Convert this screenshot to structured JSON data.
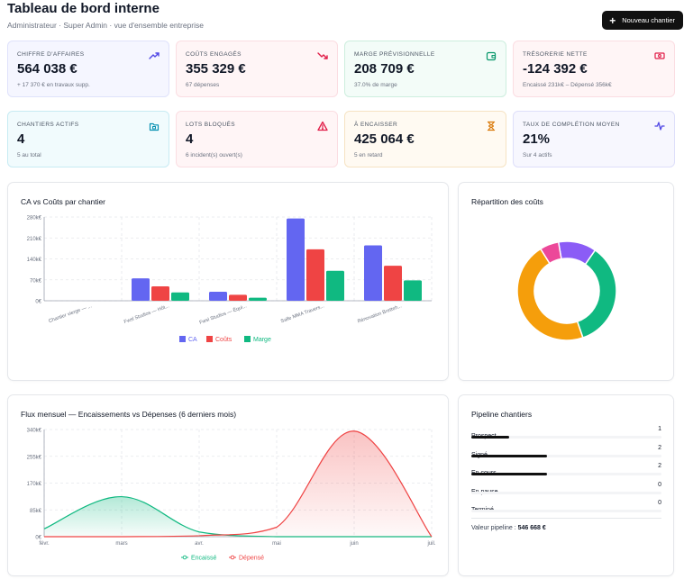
{
  "header": {
    "title": "Tableau de bord interne",
    "subtitle": "Administrateur · Super Admin · vue d'ensemble entreprise",
    "new_button": "Nouveau chantier"
  },
  "kpis": [
    {
      "label": "CHIFFRE D'AFFAIRES",
      "value": "564 038 €",
      "sub": "+ 17 370 € en travaux supp.",
      "icon": "trending-up-icon",
      "color": "#4f46e5"
    },
    {
      "label": "COÛTS ENGAGÉS",
      "value": "355 329 €",
      "sub": "67 dépenses",
      "icon": "trending-down-icon",
      "color": "#e11d48"
    },
    {
      "label": "MARGE PRÉVISIONNELLE",
      "value": "208 709 €",
      "sub": "37.0% de marge",
      "icon": "wallet-icon",
      "color": "#059669"
    },
    {
      "label": "TRÉSORERIE NETTE",
      "value": "-124 392 €",
      "sub": "Encaissé 231k€ – Dépensé 356k€",
      "icon": "banknote-icon",
      "color": "#e11d48"
    },
    {
      "label": "CHANTIERS ACTIFS",
      "value": "4",
      "sub": "5 au total",
      "icon": "folder-icon",
      "color": "#0891b2"
    },
    {
      "label": "LOTS BLOQUÉS",
      "value": "4",
      "sub": "6 incident(s) ouvert(s)",
      "icon": "alert-triangle-icon",
      "color": "#e11d48"
    },
    {
      "label": "À ENCAISSER",
      "value": "425 064 €",
      "sub": "5 en retard",
      "icon": "hourglass-icon",
      "color": "#d97706"
    },
    {
      "label": "TAUX DE COMPLÉTION MOYEN",
      "value": "21%",
      "sub": "Sur 4 actifs",
      "icon": "activity-icon",
      "color": "#4f46e5"
    }
  ],
  "bar_card": {
    "title": "CA vs Coûts par chantier"
  },
  "donut_card": {
    "title": "Répartition des coûts"
  },
  "flux_card": {
    "title": "Flux mensuel — Encaissements vs Dépenses (6 derniers mois)"
  },
  "pipeline": {
    "title": "Pipeline chantiers",
    "rows": [
      {
        "label": "Prospect",
        "count": "1",
        "fraction": 0.2
      },
      {
        "label": "Signé",
        "count": "2",
        "fraction": 0.4
      },
      {
        "label": "En cours",
        "count": "2",
        "fraction": 0.4
      },
      {
        "label": "En pause",
        "count": "0",
        "fraction": 0
      },
      {
        "label": "Terminé",
        "count": "0",
        "fraction": 0
      }
    ],
    "total_label": "Valeur pipeline :",
    "total_value": "546 668 €"
  },
  "chart_data": [
    {
      "type": "bar",
      "title": "CA vs Coûts par chantier",
      "categories": [
        "Chantier vierge — ...",
        "Fwsl Studios — Hôt...",
        "Fwsl Studios — Équi...",
        "Salle MMA Travers...",
        "Rénovation Bretteh..."
      ],
      "series": [
        {
          "name": "CA",
          "color": "#6366f1",
          "values": [
            0,
            75000,
            30000,
            275000,
            185000
          ]
        },
        {
          "name": "Coûts",
          "color": "#ef4444",
          "values": [
            0,
            48000,
            20000,
            172000,
            117000
          ]
        },
        {
          "name": "Marge",
          "color": "#10b981",
          "values": [
            0,
            28000,
            10000,
            100000,
            68000
          ]
        }
      ],
      "yticks": [
        "0€",
        "70k€",
        "140k€",
        "210k€",
        "280k€"
      ],
      "ylim": [
        0,
        280000
      ]
    },
    {
      "type": "pie",
      "title": "Répartition des coûts",
      "slices": [
        {
          "color": "#f59e0b",
          "value": 45
        },
        {
          "color": "#10b981",
          "value": 34
        },
        {
          "color": "#8b5cf6",
          "value": 12
        },
        {
          "color": "#ec4899",
          "value": 6
        }
      ]
    },
    {
      "type": "area",
      "title": "Flux mensuel — Encaissements vs Dépenses (6 derniers mois)",
      "categories": [
        "févr.",
        "mars",
        "avr.",
        "mai",
        "juin",
        "juil."
      ],
      "series": [
        {
          "name": "Encaissé",
          "color": "#10b981",
          "values": [
            25000,
            127000,
            15000,
            0,
            0,
            0
          ]
        },
        {
          "name": "Dépensé",
          "color": "#ef4444",
          "values": [
            0,
            0,
            3000,
            30000,
            335000,
            0
          ]
        }
      ],
      "yticks": [
        "0€",
        "85k€",
        "170k€",
        "255k€",
        "340k€"
      ],
      "ylim": [
        0,
        340000
      ]
    }
  ]
}
